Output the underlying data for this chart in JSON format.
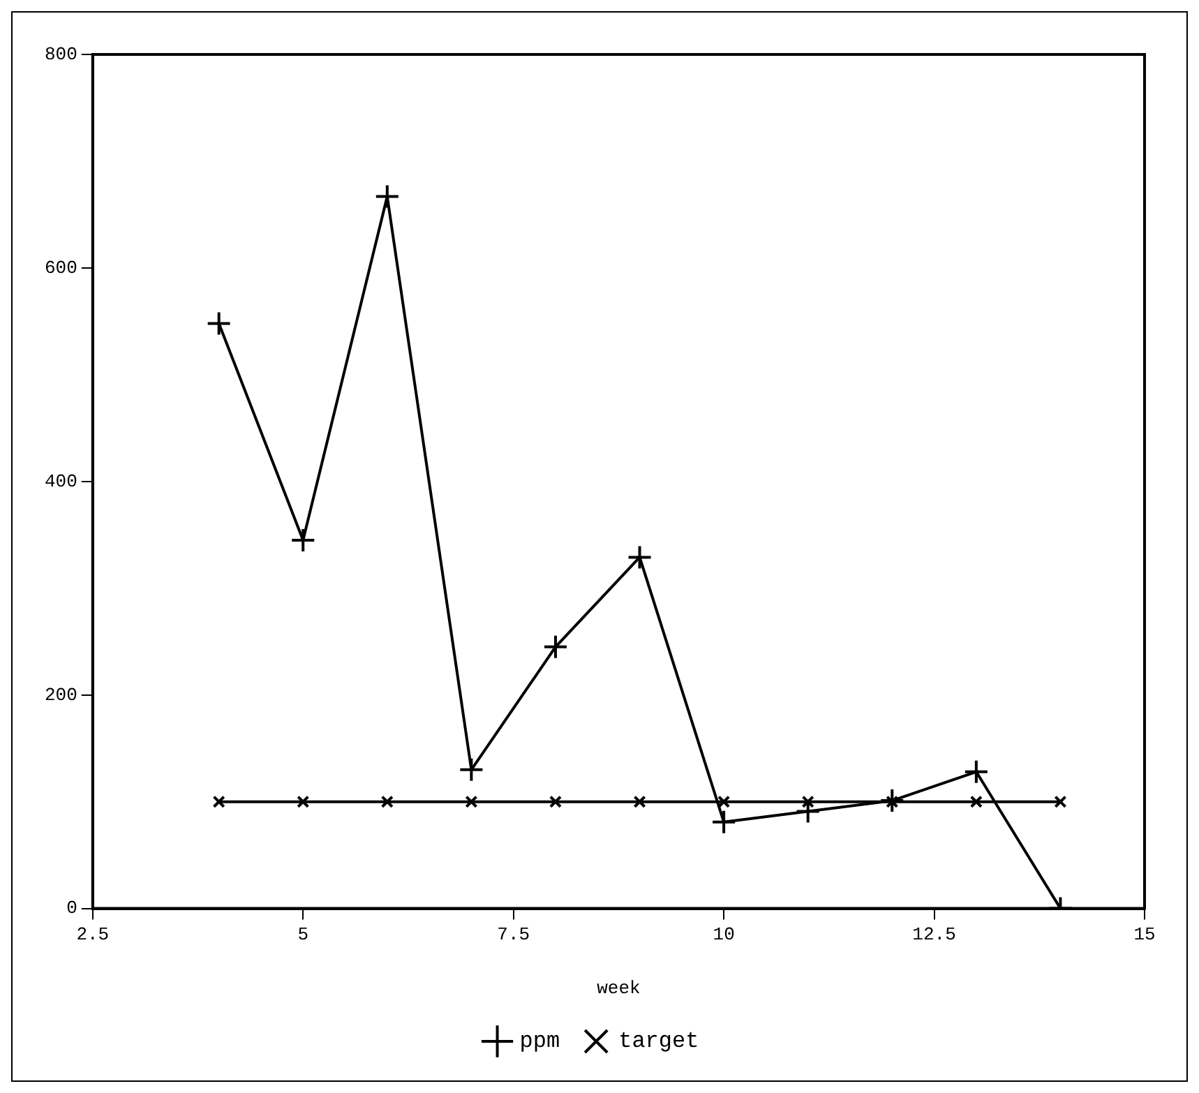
{
  "chart_data": {
    "type": "line",
    "xlabel": "week",
    "xlim": [
      2.5,
      15
    ],
    "xticks": [
      2.5,
      5,
      7.5,
      10,
      12.5,
      15
    ],
    "ylim": [
      0,
      800
    ],
    "yticks": [
      0,
      200,
      400,
      600,
      800
    ],
    "grid": false,
    "legend": "bottom",
    "line_style": "solid",
    "series": [
      {
        "name": "ppm",
        "color": "#000000",
        "marker": "cross",
        "x": [
          4,
          5,
          6,
          7,
          8,
          9,
          10,
          11,
          12,
          13,
          14
        ],
        "values": [
          548,
          345,
          667,
          130,
          245,
          329,
          81,
          91,
          101,
          128,
          0
        ]
      },
      {
        "name": "target",
        "color": "#000000",
        "marker": "x",
        "x": [
          4,
          5,
          6,
          7,
          8,
          9,
          10,
          11,
          12,
          13,
          14
        ],
        "values": [
          100,
          100,
          100,
          100,
          100,
          100,
          100,
          100,
          100,
          100,
          100
        ]
      }
    ]
  }
}
